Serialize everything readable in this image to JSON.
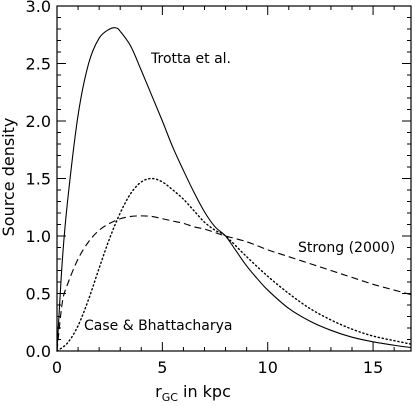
{
  "chart_data": {
    "type": "line",
    "title": "",
    "xlabel": "r_GC in kpc",
    "xlabel_parts": {
      "r": "r",
      "sub": "GC",
      "rest": " in kpc"
    },
    "ylabel": "Source density",
    "xlim": [
      0,
      16.8
    ],
    "ylim": [
      0,
      3.0
    ],
    "xticks": [
      0,
      5,
      10,
      15
    ],
    "yticks": [
      0.0,
      0.5,
      1.0,
      1.5,
      2.0,
      2.5,
      3.0
    ],
    "xticks_labels": [
      "0",
      "5",
      "10",
      "15"
    ],
    "yticks_labels": [
      "0.0",
      "0.5",
      "1.0",
      "1.5",
      "2.0",
      "2.5",
      "3.0"
    ],
    "grid": false,
    "legend": "none",
    "series": [
      {
        "name": "Trotta et al.",
        "dash": "solid",
        "x": [
          0,
          0.25,
          0.5,
          1,
          1.5,
          2,
          2.5,
          2.8,
          3,
          3.5,
          4,
          4.5,
          5,
          5.5,
          6,
          6.5,
          7,
          7.5,
          8,
          8.5,
          9,
          9.5,
          10,
          11,
          12,
          13,
          14,
          15,
          16,
          16.8
        ],
        "values": [
          0.0,
          0.78,
          1.3,
          2.05,
          2.5,
          2.72,
          2.8,
          2.81,
          2.78,
          2.65,
          2.44,
          2.22,
          2.0,
          1.77,
          1.57,
          1.38,
          1.21,
          1.08,
          1.0,
          0.87,
          0.74,
          0.63,
          0.53,
          0.37,
          0.26,
          0.18,
          0.12,
          0.08,
          0.05,
          0.03
        ]
      },
      {
        "name": "Strong (2000)",
        "dash": "dashed",
        "x": [
          0,
          0.25,
          0.5,
          1,
          1.5,
          2,
          2.5,
          3,
          3.5,
          4,
          4.5,
          5,
          5.5,
          6,
          6.5,
          7,
          7.5,
          8,
          9,
          10,
          11,
          12,
          13,
          14,
          15,
          16,
          16.8
        ],
        "values": [
          0.0,
          0.42,
          0.58,
          0.8,
          0.95,
          1.05,
          1.11,
          1.15,
          1.17,
          1.175,
          1.17,
          1.15,
          1.13,
          1.11,
          1.08,
          1.06,
          1.03,
          1.0,
          0.95,
          0.88,
          0.82,
          0.76,
          0.7,
          0.64,
          0.58,
          0.53,
          0.49
        ]
      },
      {
        "name": "Case & Bhattacharya",
        "dash": "dotted",
        "x": [
          0,
          0.5,
          1,
          1.5,
          2,
          2.5,
          3,
          3.5,
          4,
          4.5,
          5,
          5.5,
          6,
          6.5,
          7,
          7.5,
          8,
          9,
          10,
          11,
          12,
          13,
          14,
          15,
          16,
          16.8
        ],
        "values": [
          0.0,
          0.07,
          0.22,
          0.45,
          0.72,
          0.98,
          1.2,
          1.37,
          1.47,
          1.5,
          1.47,
          1.4,
          1.32,
          1.22,
          1.12,
          1.05,
          1.0,
          0.82,
          0.65,
          0.5,
          0.37,
          0.27,
          0.19,
          0.13,
          0.09,
          0.06
        ]
      }
    ],
    "annotations": [
      {
        "text": "Trotta et al."
      },
      {
        "text": "Strong (2000)"
      },
      {
        "text": "Case & Bhattacharya"
      }
    ]
  }
}
